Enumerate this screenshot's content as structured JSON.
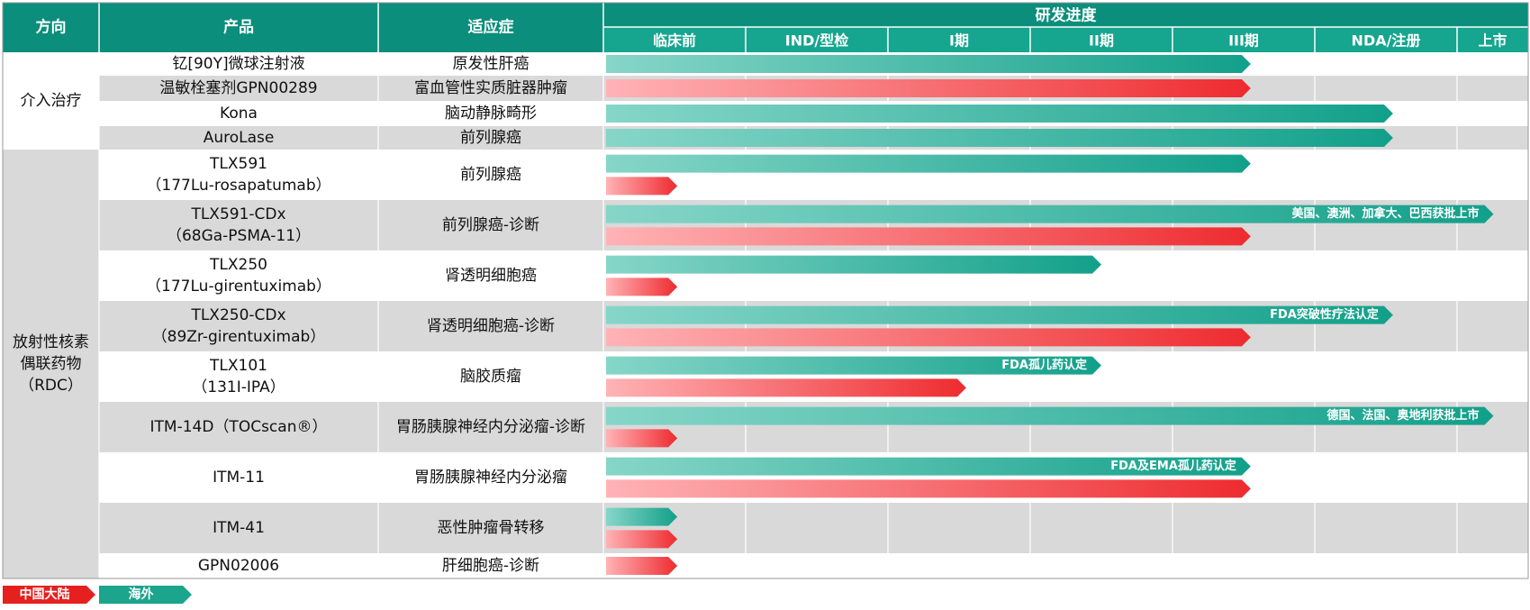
{
  "header": {
    "direction": "方向",
    "product": "产品",
    "indication": "适应症",
    "progress": "研发进度",
    "stages": [
      "临床前",
      "IND/型检",
      "I期",
      "II期",
      "III期",
      "NDA/注册",
      "上市"
    ]
  },
  "groups": [
    {
      "label_lines": [
        "介入治疗"
      ]
    },
    {
      "label_lines": [
        "放射性核素",
        "偶联药物",
        "（RDC）"
      ]
    }
  ],
  "colors": {
    "header_bg": "#0b8e7b",
    "stage_bg": "#16a58e",
    "grey_row": "#d9d9d9",
    "teal_light": "#86d6c8",
    "teal_dark": "#12a08a",
    "red_light": "#ffb3b6",
    "red_dark": "#ee2b2f",
    "legend_red": "#e5201f",
    "legend_teal": "#1aa58c"
  },
  "legend": [
    {
      "label": "中国大陆",
      "series": "china"
    },
    {
      "label": "海外",
      "series": "overseas"
    }
  ],
  "chart_data": {
    "type": "bar",
    "stage_scale": [
      "临床前",
      "IND/型检",
      "I期",
      "II期",
      "III期",
      "NDA/注册",
      "上市"
    ],
    "series": [
      {
        "name": "中国大陆"
      },
      {
        "name": "海外"
      }
    ],
    "rows": [
      {
        "group": 0,
        "product_lines": [
          "钇[90Y]微球注射液"
        ],
        "indication": "原发性肝癌",
        "shade": false,
        "bars": [
          {
            "series": "overseas",
            "stage": "III期",
            "reach": 4.55
          }
        ]
      },
      {
        "group": 0,
        "product_lines": [
          "温敏栓塞剂GPN00289"
        ],
        "indication": "富血管性实质脏器肿瘤",
        "shade": true,
        "bars": [
          {
            "series": "china",
            "stage": "III期",
            "reach": 4.55
          }
        ]
      },
      {
        "group": 0,
        "product_lines": [
          "Kona"
        ],
        "indication": "脑动静脉畸形",
        "shade": false,
        "bars": [
          {
            "series": "overseas",
            "stage": "NDA/注册",
            "reach": 5.55
          }
        ]
      },
      {
        "group": 0,
        "product_lines": [
          "AuroLase"
        ],
        "indication": "前列腺癌",
        "shade": true,
        "bars": [
          {
            "series": "overseas",
            "stage": "NDA/注册",
            "reach": 5.55
          }
        ]
      },
      {
        "group": 1,
        "product_lines": [
          "TLX591",
          "（177Lu-rosapatumab）"
        ],
        "indication": "前列腺癌",
        "shade": false,
        "bars": [
          {
            "series": "overseas",
            "stage": "III期",
            "reach": 4.55
          },
          {
            "series": "china",
            "stage": "临床前",
            "reach": 0.52
          }
        ]
      },
      {
        "group": 1,
        "product_lines": [
          "TLX591-CDx",
          "（68Ga-PSMA-11）"
        ],
        "indication": "前列腺癌-诊断",
        "shade": true,
        "bars": [
          {
            "series": "overseas",
            "stage": "上市",
            "reach": 6.5,
            "label": "美国、澳洲、加拿大、巴西获批上市"
          },
          {
            "series": "china",
            "stage": "III期",
            "reach": 4.55
          }
        ]
      },
      {
        "group": 1,
        "product_lines": [
          "TLX250",
          "（177Lu-girentuximab）"
        ],
        "indication": "肾透明细胞癌",
        "shade": false,
        "bars": [
          {
            "series": "overseas",
            "stage": "II期",
            "reach": 3.5
          },
          {
            "series": "china",
            "stage": "临床前",
            "reach": 0.52
          }
        ]
      },
      {
        "group": 1,
        "product_lines": [
          "TLX250-CDx",
          "（89Zr-girentuximab）"
        ],
        "indication": "肾透明细胞癌-诊断",
        "shade": true,
        "bars": [
          {
            "series": "overseas",
            "stage": "NDA/注册",
            "reach": 5.55,
            "label": "FDA突破性疗法认定"
          },
          {
            "series": "china",
            "stage": "III期",
            "reach": 4.55
          }
        ]
      },
      {
        "group": 1,
        "product_lines": [
          "TLX101",
          "（131I-IPA）"
        ],
        "indication": "脑胶质瘤",
        "shade": false,
        "bars": [
          {
            "series": "overseas",
            "stage": "II期",
            "reach": 3.5,
            "label": "FDA孤儿药认定"
          },
          {
            "series": "china",
            "stage": "I期",
            "reach": 2.55
          }
        ]
      },
      {
        "group": 1,
        "product_lines": [
          "ITM-14D（TOCscan®）"
        ],
        "indication": "胃肠胰腺神经内分泌瘤-诊断",
        "shade": true,
        "bars": [
          {
            "series": "overseas",
            "stage": "上市",
            "reach": 6.5,
            "label": "德国、法国、奥地利获批上市"
          },
          {
            "series": "china",
            "stage": "临床前",
            "reach": 0.52
          }
        ]
      },
      {
        "group": 1,
        "product_lines": [
          "ITM-11"
        ],
        "indication": "胃肠胰腺神经内分泌瘤",
        "shade": false,
        "bars": [
          {
            "series": "overseas",
            "stage": "III期",
            "reach": 4.55,
            "label": "FDA及EMA孤儿药认定"
          },
          {
            "series": "china",
            "stage": "III期",
            "reach": 4.55
          }
        ]
      },
      {
        "group": 1,
        "product_lines": [
          "ITM-41"
        ],
        "indication": "恶性肿瘤骨转移",
        "shade": true,
        "bars": [
          {
            "series": "overseas",
            "stage": "临床前",
            "reach": 0.52
          },
          {
            "series": "china",
            "stage": "临床前",
            "reach": 0.52
          }
        ]
      },
      {
        "group": 1,
        "product_lines": [
          "GPN02006"
        ],
        "indication": "肝细胞癌-诊断",
        "shade": false,
        "bars": [
          {
            "series": "china",
            "stage": "临床前",
            "reach": 0.52
          }
        ]
      }
    ]
  }
}
